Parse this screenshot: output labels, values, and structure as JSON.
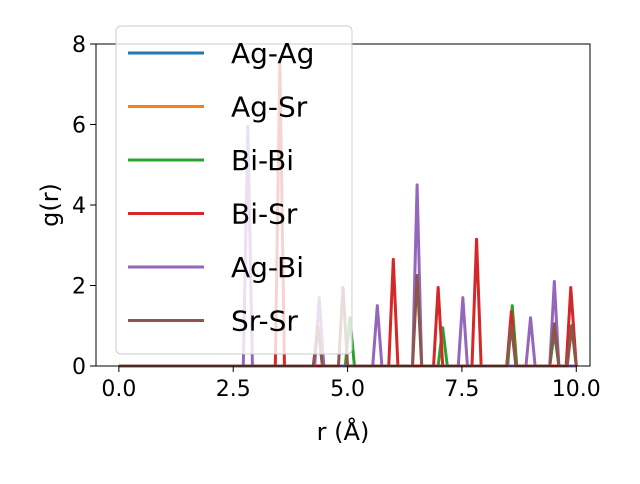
{
  "chart_data": {
    "type": "line",
    "title": "",
    "xlabel": "r (Å)",
    "ylabel": "g(r)",
    "xlim": [
      -0.5,
      10.3
    ],
    "ylim": [
      0,
      8
    ],
    "xticks": [
      0.0,
      2.5,
      5.0,
      7.5,
      10.0
    ],
    "xtick_labels": [
      "0.0",
      "2.5",
      "5.0",
      "7.5",
      "10.0"
    ],
    "yticks": [
      0,
      2,
      4,
      6,
      8
    ],
    "ytick_labels": [
      "0",
      "2",
      "4",
      "6",
      "8"
    ],
    "grid": false,
    "legend_position": "top-left",
    "series": [
      {
        "name": "Ag-Ag",
        "color": "#1f77b4",
        "points": [
          [
            0,
            0
          ],
          [
            10,
            0
          ]
        ]
      },
      {
        "name": "Ag-Sr",
        "color": "#ff7f0e",
        "points": [
          [
            0,
            0
          ],
          [
            10,
            0
          ]
        ]
      },
      {
        "name": "Bi-Bi",
        "color": "#2ca02c",
        "points": [
          [
            0,
            0
          ],
          [
            4.95,
            0
          ],
          [
            5.05,
            1.2
          ],
          [
            5.15,
            0
          ],
          [
            6.98,
            0
          ],
          [
            7.08,
            0.95
          ],
          [
            7.18,
            0
          ],
          [
            8.5,
            0
          ],
          [
            8.6,
            1.5
          ],
          [
            8.7,
            0
          ],
          [
            9.42,
            0
          ],
          [
            9.52,
            0.85
          ],
          [
            9.62,
            0
          ],
          [
            9.8,
            0
          ],
          [
            9.9,
            1.0
          ],
          [
            10,
            0
          ]
        ]
      },
      {
        "name": "Bi-Sr",
        "color": "#d62728",
        "points": [
          [
            0,
            0
          ],
          [
            3.42,
            0
          ],
          [
            3.52,
            7.5
          ],
          [
            3.62,
            0
          ],
          [
            5.9,
            0
          ],
          [
            6.0,
            2.65
          ],
          [
            6.1,
            0
          ],
          [
            6.88,
            0
          ],
          [
            6.98,
            1.95
          ],
          [
            7.08,
            0
          ],
          [
            7.72,
            0
          ],
          [
            7.82,
            3.15
          ],
          [
            7.92,
            0
          ],
          [
            8.48,
            0
          ],
          [
            8.58,
            1.35
          ],
          [
            8.68,
            0
          ],
          [
            9.78,
            0
          ],
          [
            9.88,
            1.95
          ],
          [
            10,
            0
          ]
        ]
      },
      {
        "name": "Ag-Bi",
        "color": "#9467bd",
        "points": [
          [
            0,
            0
          ],
          [
            2.72,
            0
          ],
          [
            2.82,
            5.95
          ],
          [
            2.92,
            0
          ],
          [
            4.28,
            0
          ],
          [
            4.38,
            1.7
          ],
          [
            4.48,
            0
          ],
          [
            5.55,
            0
          ],
          [
            5.65,
            1.5
          ],
          [
            5.75,
            0
          ],
          [
            6.42,
            0
          ],
          [
            6.52,
            4.5
          ],
          [
            6.62,
            0
          ],
          [
            7.42,
            0
          ],
          [
            7.52,
            1.7
          ],
          [
            7.62,
            0
          ],
          [
            8.9,
            0
          ],
          [
            9.0,
            1.2
          ],
          [
            9.1,
            0
          ],
          [
            9.42,
            0
          ],
          [
            9.52,
            2.1
          ],
          [
            9.62,
            0
          ],
          [
            10,
            0
          ]
        ]
      },
      {
        "name": "Sr-Sr",
        "color": "#8c564b",
        "points": [
          [
            0,
            0
          ],
          [
            4.25,
            0
          ],
          [
            4.35,
            1.0
          ],
          [
            4.45,
            0
          ],
          [
            4.8,
            0
          ],
          [
            4.9,
            1.95
          ],
          [
            5.0,
            0
          ],
          [
            6.42,
            0
          ],
          [
            6.52,
            2.25
          ],
          [
            6.62,
            0
          ],
          [
            8.48,
            0
          ],
          [
            8.58,
            1.0
          ],
          [
            8.68,
            0
          ],
          [
            9.42,
            0
          ],
          [
            9.52,
            1.05
          ],
          [
            9.62,
            0
          ],
          [
            9.8,
            0
          ],
          [
            9.9,
            1.0
          ],
          [
            10,
            0
          ]
        ]
      }
    ]
  }
}
